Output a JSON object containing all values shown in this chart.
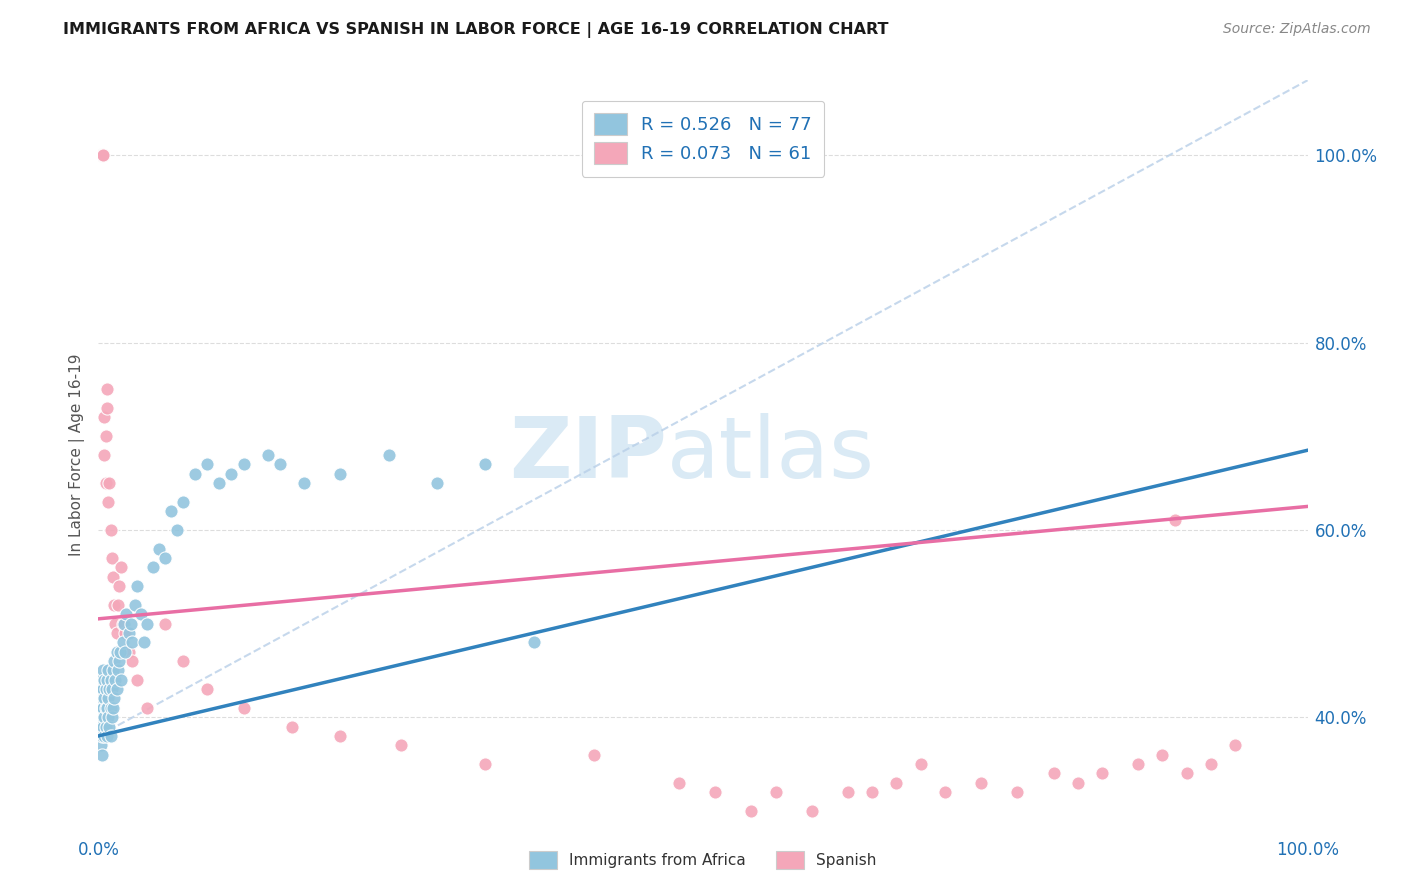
{
  "title": "IMMIGRANTS FROM AFRICA VS SPANISH IN LABOR FORCE | AGE 16-19 CORRELATION CHART",
  "source": "Source: ZipAtlas.com",
  "ylabel": "In Labor Force | Age 16-19",
  "legend_r1": "R = 0.526",
  "legend_n1": "N = 77",
  "legend_r2": "R = 0.073",
  "legend_n2": "N = 61",
  "color_blue": "#92c5de",
  "color_pink": "#f4a7b9",
  "color_blue_line": "#3182bd",
  "color_pink_line": "#e86ea4",
  "color_dashed": "#b8cfe8",
  "watermark_color": "#daeaf5",
  "xlim": [
    0.0,
    1.0
  ],
  "ylim": [
    0.28,
    1.08
  ],
  "yticks": [
    0.4,
    0.6,
    0.8,
    1.0
  ],
  "ytick_labels": [
    "40.0%",
    "60.0%",
    "80.0%",
    "100.0%"
  ],
  "blue_line": {
    "x0": 0.0,
    "y0": 0.38,
    "x1": 1.0,
    "y1": 0.685
  },
  "pink_line": {
    "x0": 0.0,
    "y0": 0.505,
    "x1": 1.0,
    "y1": 0.625
  },
  "diag_line": {
    "x0": 0.0,
    "y0": 0.38,
    "x1": 1.0,
    "y1": 1.08
  },
  "blue_x": [
    0.001,
    0.001,
    0.001,
    0.002,
    0.002,
    0.002,
    0.002,
    0.003,
    0.003,
    0.003,
    0.003,
    0.004,
    0.004,
    0.004,
    0.004,
    0.005,
    0.005,
    0.005,
    0.005,
    0.006,
    0.006,
    0.006,
    0.007,
    0.007,
    0.007,
    0.008,
    0.008,
    0.008,
    0.009,
    0.009,
    0.01,
    0.01,
    0.01,
    0.011,
    0.011,
    0.012,
    0.012,
    0.013,
    0.013,
    0.014,
    0.015,
    0.015,
    0.016,
    0.017,
    0.018,
    0.019,
    0.02,
    0.021,
    0.022,
    0.023,
    0.025,
    0.027,
    0.028,
    0.03,
    0.032,
    0.035,
    0.038,
    0.04,
    0.045,
    0.05,
    0.055,
    0.06,
    0.065,
    0.07,
    0.08,
    0.09,
    0.1,
    0.11,
    0.12,
    0.14,
    0.15,
    0.17,
    0.2,
    0.24,
    0.28,
    0.32,
    0.36
  ],
  "blue_y": [
    0.38,
    0.4,
    0.41,
    0.37,
    0.39,
    0.42,
    0.44,
    0.38,
    0.41,
    0.43,
    0.36,
    0.39,
    0.41,
    0.43,
    0.45,
    0.38,
    0.4,
    0.42,
    0.44,
    0.39,
    0.41,
    0.43,
    0.38,
    0.41,
    0.44,
    0.4,
    0.42,
    0.45,
    0.39,
    0.43,
    0.38,
    0.41,
    0.44,
    0.4,
    0.43,
    0.41,
    0.45,
    0.42,
    0.46,
    0.44,
    0.43,
    0.47,
    0.45,
    0.46,
    0.47,
    0.44,
    0.48,
    0.5,
    0.47,
    0.51,
    0.49,
    0.5,
    0.48,
    0.52,
    0.54,
    0.51,
    0.48,
    0.5,
    0.56,
    0.58,
    0.57,
    0.62,
    0.6,
    0.63,
    0.66,
    0.67,
    0.65,
    0.66,
    0.67,
    0.68,
    0.67,
    0.65,
    0.66,
    0.68,
    0.65,
    0.67,
    0.48
  ],
  "pink_x": [
    0.001,
    0.001,
    0.002,
    0.002,
    0.003,
    0.003,
    0.004,
    0.004,
    0.005,
    0.005,
    0.006,
    0.006,
    0.007,
    0.007,
    0.008,
    0.009,
    0.01,
    0.011,
    0.012,
    0.013,
    0.014,
    0.015,
    0.016,
    0.017,
    0.019,
    0.02,
    0.022,
    0.025,
    0.028,
    0.032,
    0.04,
    0.055,
    0.07,
    0.09,
    0.12,
    0.16,
    0.2,
    0.25,
    0.32,
    0.41,
    0.48,
    0.51,
    0.54,
    0.56,
    0.59,
    0.62,
    0.64,
    0.66,
    0.68,
    0.7,
    0.73,
    0.76,
    0.79,
    0.81,
    0.83,
    0.86,
    0.88,
    0.9,
    0.92,
    0.94,
    0.89
  ],
  "pink_y": [
    1.0,
    1.0,
    1.0,
    1.0,
    1.0,
    1.0,
    1.0,
    1.0,
    0.72,
    0.68,
    0.65,
    0.7,
    0.73,
    0.75,
    0.63,
    0.65,
    0.6,
    0.57,
    0.55,
    0.52,
    0.5,
    0.49,
    0.52,
    0.54,
    0.56,
    0.5,
    0.49,
    0.47,
    0.46,
    0.44,
    0.41,
    0.5,
    0.46,
    0.43,
    0.41,
    0.39,
    0.38,
    0.37,
    0.35,
    0.36,
    0.33,
    0.32,
    0.3,
    0.32,
    0.3,
    0.32,
    0.32,
    0.33,
    0.35,
    0.32,
    0.33,
    0.32,
    0.34,
    0.33,
    0.34,
    0.35,
    0.36,
    0.34,
    0.35,
    0.37,
    0.61
  ]
}
